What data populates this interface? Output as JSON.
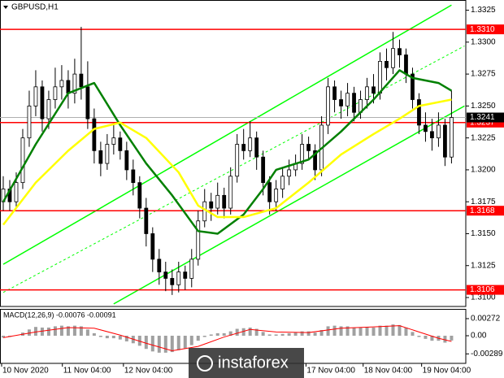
{
  "chart_data": [
    {
      "type": "candlestick",
      "symbol": "GBPUSD,H1",
      "xlim": [
        -0.5,
        71.2
      ],
      "ylim": [
        1.3093,
        1.3333
      ],
      "yticks": [
        1.3325,
        {
          "value": 1.33,
          "label": "1.3300"
        },
        1.3275,
        {
          "value": 1.325,
          "label": "1.3250"
        },
        1.3225,
        {
          "value": 1.32,
          "label": "1.3200"
        },
        1.3175,
        {
          "value": 1.315,
          "label": "1.3150"
        },
        1.3125,
        {
          "value": 1.31,
          "label": "1.3100"
        }
      ],
      "up_color": "#ffffff",
      "down_color": "#000000",
      "wick_color": "#000000",
      "categories": [
        null,
        null,
        null,
        null,
        null,
        null,
        null,
        null,
        null,
        null,
        null,
        null,
        null,
        null,
        null,
        null,
        null,
        null,
        null,
        null,
        null,
        null,
        null,
        null,
        null,
        null,
        null,
        null,
        null,
        null,
        null,
        null,
        null,
        null,
        null,
        null,
        null,
        null,
        null,
        null,
        null,
        null,
        null,
        null,
        null,
        null,
        null,
        null,
        null,
        null,
        null,
        null,
        null,
        null,
        null,
        null,
        null,
        null,
        null,
        null,
        null,
        null,
        null,
        null,
        null,
        null,
        null,
        null,
        null,
        null
      ],
      "candles": {
        "open": [
          1.3175,
          1.3185,
          1.3175,
          1.319,
          1.3225,
          1.325,
          1.3265,
          1.324,
          1.3255,
          1.3265,
          1.327,
          1.326,
          1.3275,
          1.3265,
          1.324,
          1.3215,
          1.3205,
          1.322,
          1.3225,
          1.3215,
          1.32,
          1.319,
          1.317,
          1.315,
          1.313,
          1.312,
          1.3115,
          1.311,
          1.312,
          1.3115,
          1.313,
          1.316,
          1.3175,
          1.317,
          1.318,
          1.317,
          1.3195,
          1.322,
          1.3215,
          1.3225,
          1.321,
          1.319,
          1.3175,
          1.3185,
          1.3195,
          1.32,
          1.3205,
          1.322,
          1.3215,
          1.32,
          1.3235,
          1.3265,
          1.3255,
          1.325,
          1.326,
          1.3245,
          1.3255,
          1.3265,
          1.326,
          1.3285,
          1.328,
          1.3295,
          1.329,
          1.3275,
          1.3255,
          1.3235,
          1.323,
          1.3225,
          1.3235,
          1.321
        ],
        "high": [
          1.3195,
          1.3192,
          1.3198,
          1.3232,
          1.3262,
          1.3278,
          1.327,
          1.3262,
          1.328,
          1.3282,
          1.3278,
          1.3287,
          1.3312,
          1.3285,
          1.3248,
          1.3222,
          1.3228,
          1.3235,
          1.323,
          1.3222,
          1.3208,
          1.3195,
          1.3178,
          1.3155,
          1.3138,
          1.3128,
          1.3122,
          1.3128,
          1.3125,
          1.3138,
          1.3168,
          1.3185,
          1.3182,
          1.319,
          1.3186,
          1.3202,
          1.3228,
          1.3232,
          1.3238,
          1.323,
          1.3215,
          1.3195,
          1.3192,
          1.3202,
          1.3208,
          1.3212,
          1.3228,
          1.3226,
          1.322,
          1.3242,
          1.3272,
          1.327,
          1.3262,
          1.3268,
          1.3265,
          1.3262,
          1.3272,
          1.3275,
          1.3292,
          1.3295,
          1.3308,
          1.3302,
          1.3295,
          1.328,
          1.326,
          1.3245,
          1.324,
          1.3245,
          1.324,
          1.3262
        ],
        "low": [
          1.3168,
          1.3168,
          1.317,
          1.3185,
          1.3218,
          1.3242,
          1.323,
          1.3232,
          1.3248,
          1.3255,
          1.3248,
          1.3252,
          1.3255,
          1.3232,
          1.3205,
          1.3195,
          1.32,
          1.3212,
          1.3208,
          1.3192,
          1.318,
          1.3162,
          1.314,
          1.312,
          1.311,
          1.3105,
          1.3102,
          1.3104,
          1.3106,
          1.3108,
          1.3125,
          1.3155,
          1.316,
          1.3165,
          1.3162,
          1.3165,
          1.319,
          1.3208,
          1.321,
          1.32,
          1.318,
          1.3165,
          1.3168,
          1.3178,
          1.3188,
          1.3195,
          1.32,
          1.3208,
          1.3192,
          1.3195,
          1.3228,
          1.3245,
          1.324,
          1.3242,
          1.3238,
          1.324,
          1.3248,
          1.3252,
          1.3255,
          1.327,
          1.3275,
          1.328,
          1.3268,
          1.3248,
          1.3228,
          1.3222,
          1.3215,
          1.3218,
          1.3203,
          1.3205
        ],
        "close": [
          1.3185,
          1.3175,
          1.319,
          1.3225,
          1.325,
          1.3265,
          1.324,
          1.3255,
          1.3265,
          1.327,
          1.326,
          1.3275,
          1.3265,
          1.324,
          1.3215,
          1.3205,
          1.322,
          1.3225,
          1.3215,
          1.32,
          1.319,
          1.317,
          1.315,
          1.313,
          1.312,
          1.3115,
          1.311,
          1.312,
          1.3115,
          1.313,
          1.316,
          1.3175,
          1.317,
          1.318,
          1.317,
          1.3195,
          1.322,
          1.3215,
          1.3225,
          1.321,
          1.319,
          1.3175,
          1.3185,
          1.3195,
          1.32,
          1.3205,
          1.322,
          1.3215,
          1.32,
          1.3235,
          1.3265,
          1.3255,
          1.325,
          1.326,
          1.3245,
          1.3255,
          1.3265,
          1.326,
          1.3285,
          1.328,
          1.3295,
          1.329,
          1.3275,
          1.3255,
          1.3235,
          1.323,
          1.3225,
          1.3235,
          1.321,
          1.3241
        ]
      },
      "lines": [
        {
          "color": "#008000",
          "width": 2.5,
          "x": [
            0,
            5,
            10,
            14,
            18,
            22,
            26,
            30,
            33,
            37,
            40,
            42,
            47,
            52,
            57,
            61,
            63,
            67,
            69
          ],
          "values": [
            1.3175,
            1.322,
            1.326,
            1.3268,
            1.3235,
            1.3205,
            1.318,
            1.3152,
            1.315,
            1.3165,
            1.3185,
            1.32,
            1.3208,
            1.323,
            1.3255,
            1.3278,
            1.3272,
            1.3268,
            1.3262
          ]
        },
        {
          "color": "#ffff00",
          "width": 2.5,
          "x": [
            0,
            5,
            10,
            14,
            18,
            22,
            27,
            30,
            33,
            37,
            42,
            47,
            52,
            57,
            61,
            64,
            69
          ],
          "values": [
            1.3157,
            1.319,
            1.3215,
            1.3232,
            1.3237,
            1.3225,
            1.3198,
            1.3172,
            1.3163,
            1.3163,
            1.317,
            1.319,
            1.3212,
            1.3228,
            1.324,
            1.325,
            1.3255
          ]
        }
      ],
      "trendlines": [
        {
          "color": "#00ff00",
          "style": "solid",
          "x": [
            0,
            69
          ],
          "values": [
            1.3126,
            1.3329
          ]
        },
        {
          "color": "#00ff00",
          "style": "solid",
          "x": [
            17,
            71
          ],
          "values": [
            1.3095,
            1.325
          ]
        },
        {
          "color": "#00ff00",
          "style": "dashed",
          "x": [
            0,
            71
          ],
          "values": [
            1.3104,
            1.3297
          ]
        }
      ],
      "levels": [
        {
          "value": 1.331,
          "label": "1.3310"
        },
        1.3237,
        1.3168,
        1.3106
      ],
      "level_color": "#ff0000",
      "current_price": 1.3241
    },
    {
      "type": "macd",
      "title": "MACD(12,26,9) -0.00076 -0.00091",
      "xlim": [
        -0.5,
        71.2
      ],
      "ylim": [
        -0.0044,
        0.00427
      ],
      "yticks": [
        0.00272,
        {
          "value": 0,
          "label": "0.00"
        },
        -0.00289
      ],
      "xticks": [
        {
          "value": -0.25,
          "label": "10 Nov 2020"
        },
        {
          "value": 9.1,
          "label": "11 Nov 04:00"
        },
        {
          "value": 18.5,
          "label": "12 Nov 04:00"
        },
        {
          "value": 46.6,
          "label": "17 Nov 04:00"
        },
        {
          "value": 55.4,
          "label": "18 Nov 04:00"
        },
        {
          "value": 64.4,
          "label": "19 Nov 04:00"
        }
      ],
      "histogram_color": "#a0a0a0",
      "histogram": [
        -0.0003,
        -0.0002,
        0.0,
        0.0005,
        0.001,
        0.0014,
        0.0013,
        0.0013,
        0.0015,
        0.0016,
        0.0015,
        0.0016,
        0.0015,
        0.001,
        0.0004,
        -0.0002,
        -0.0004,
        -0.0004,
        -0.0006,
        -0.0009,
        -0.0012,
        -0.0016,
        -0.0021,
        -0.0025,
        -0.0027,
        -0.0027,
        -0.0026,
        -0.0023,
        -0.002,
        -0.0015,
        -0.0008,
        -0.0002,
        0.0002,
        0.0004,
        0.0004,
        0.0007,
        0.0011,
        0.0012,
        0.0013,
        0.0011,
        0.0006,
        0.0002,
        0.0002,
        0.0003,
        0.0004,
        0.0005,
        0.0007,
        0.0007,
        0.0005,
        0.0009,
        0.0015,
        0.0016,
        0.0015,
        0.0015,
        0.0013,
        0.0013,
        0.0014,
        0.0013,
        0.0016,
        0.0016,
        0.0018,
        0.0017,
        0.0013,
        0.0006,
        -0.0002,
        -0.0005,
        -0.0008,
        -0.0008,
        -0.0011,
        -0.00076
      ],
      "signal": {
        "color": "#ff0000",
        "x": [
          0,
          5,
          10,
          14,
          18,
          22,
          26,
          30,
          34,
          38,
          42,
          47,
          52,
          57,
          61,
          64,
          67,
          69
        ],
        "values": [
          -0.0003,
          0.0006,
          0.0013,
          0.0012,
          0.0001,
          -0.0012,
          -0.0024,
          -0.0017,
          -0.0002,
          0.001,
          0.0006,
          0.0005,
          0.0012,
          0.0014,
          0.0016,
          0.0006,
          -0.0004,
          -0.00091
        ]
      }
    }
  ],
  "watermark": "instaforex"
}
